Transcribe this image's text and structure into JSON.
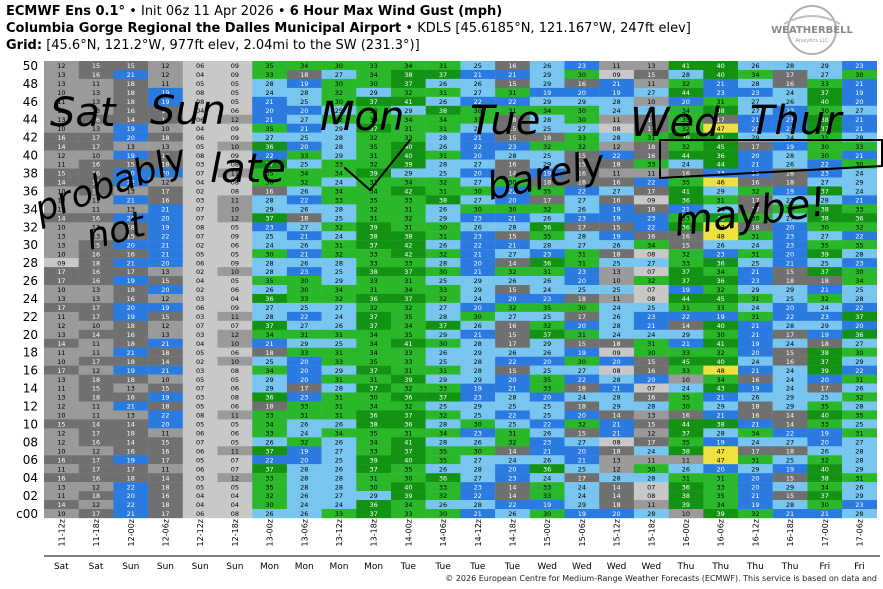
{
  "header": {
    "line1_prefix": "ECMWF Ens 0.1°",
    "line1_init": "Init 06z 11 Apr 2026",
    "line1_bullet": "•",
    "line1_title": "6 Hour Max Wind Gust (mph)",
    "line2_site": "Columbia Gorge Regional the Dalles Municipal Airport",
    "line2_info": "• KDLS [45.6185°N, 121.167°W, 247ft elev]",
    "line3_label": "Grid:",
    "line3_info": "[45.6°N, 121.2°W, 977ft elev, 2.04mi to the SW (231.3°)]"
  },
  "logo": {
    "text1": "WEATHER",
    "text2": "BELL",
    "text3": "Analytics LLC"
  },
  "footer": "© 2026 European Centre for Medium-Range Weather Forecasts (ECMWF). This service is based on data and",
  "annotations": [
    "Sat",
    "Sun",
    "Mon",
    "Tue",
    "Wed",
    "Thur",
    "late",
    "probably",
    "not",
    "barely",
    "maybe!"
  ],
  "colors": {
    "calm_grey": "#c8c8c8",
    "mid_grey": "#9a9a9a",
    "dark_grey": "#707070",
    "blue": "#2a7ae0",
    "light_blue": "#78c6f0",
    "green": "#2ab82a",
    "dark_green": "#149214",
    "yellow": "#f0e040"
  },
  "chart_data": {
    "type": "heatmap",
    "title": "6 Hour Max Wind Gust (mph)",
    "y_tick_labels": [
      "50",
      "48",
      "46",
      "44",
      "42",
      "40",
      "38",
      "36",
      "34",
      "32",
      "30",
      "28",
      "26",
      "24",
      "22",
      "20",
      "18",
      "16",
      "14",
      "12",
      "10",
      "08",
      "06",
      "04",
      "02",
      "c00"
    ],
    "member_rows": 51,
    "x_categories": [
      "11-12z",
      "11-18z",
      "12-00z",
      "12-06z",
      "12-12z",
      "12-18z",
      "13-00z",
      "13-06z",
      "13-12z",
      "13-18z",
      "14-00z",
      "14-06z",
      "14-12z",
      "14-18z",
      "15-00z",
      "15-06z",
      "15-12z",
      "15-18z",
      "16-00z",
      "16-06z",
      "16-12z",
      "16-18z",
      "17-00z",
      "17-06z"
    ],
    "day_labels": [
      "Sat",
      "Sat",
      "Sun",
      "Sun",
      "Sun",
      "Sun",
      "Mon",
      "Mon",
      "Mon",
      "Mon",
      "Tue",
      "Tue",
      "Tue",
      "Tue",
      "Wed",
      "Wed",
      "Wed",
      "Wed",
      "Thu",
      "Thu",
      "Thu",
      "Thu",
      "Fri",
      "Fri"
    ],
    "member_50_values": [
      12,
      15,
      15,
      12,
      6,
      9,
      35,
      34,
      30,
      33,
      34,
      31,
      25,
      16,
      26,
      23,
      11,
      13,
      41,
      40,
      26,
      28,
      29,
      23
    ],
    "control_values": [
      10,
      17,
      21,
      17,
      6,
      8,
      26,
      26,
      33,
      37,
      33,
      30,
      21,
      26,
      30,
      19,
      20,
      28,
      10,
      39,
      32,
      21,
      21,
      28
    ],
    "column_ranges": [
      [
        9,
        17
      ],
      [
        10,
        18
      ],
      [
        13,
        22
      ],
      [
        10,
        22
      ],
      [
        2,
        8
      ],
      [
        4,
        12
      ],
      [
        16,
        37
      ],
      [
        17,
        35
      ],
      [
        24,
        34
      ],
      [
        29,
        39
      ],
      [
        29,
        42
      ],
      [
        25,
        38
      ],
      [
        19,
        31
      ],
      [
        13,
        33
      ],
      [
        17,
        37
      ],
      [
        14,
        33
      ],
      [
        8,
        29
      ],
      [
        7,
        34
      ],
      [
        10,
        45
      ],
      [
        17,
        49
      ],
      [
        15,
        35
      ],
      [
        14,
        30
      ],
      [
        17,
        41
      ],
      [
        18,
        37
      ]
    ]
  }
}
